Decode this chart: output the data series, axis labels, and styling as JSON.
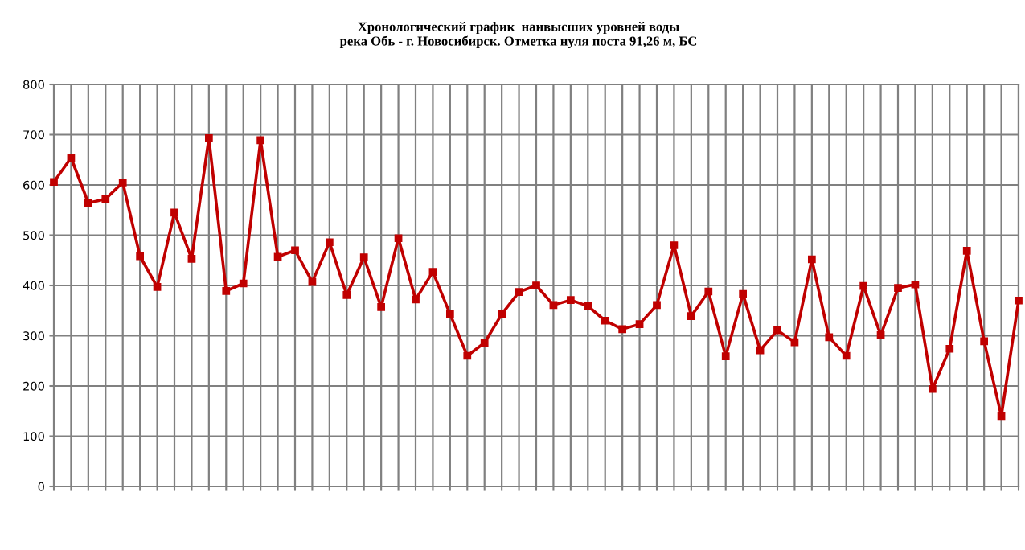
{
  "chart_data": {
    "type": "line",
    "title": "Хронологический график  наивысших уровней воды\nрека Обь - г. Новосибирск. Отметка нуля поста 91,26 м, БС",
    "categories": [
      null,
      null,
      null,
      null,
      null,
      null,
      null,
      null,
      null,
      null,
      null,
      null,
      null,
      null,
      null,
      null,
      null,
      null,
      null,
      null,
      null,
      null,
      null,
      null,
      null,
      null,
      null,
      null,
      null,
      null,
      null,
      null,
      null,
      null,
      null,
      null,
      null,
      null,
      null,
      null,
      null,
      null,
      null,
      null,
      null,
      null,
      null,
      null,
      null,
      null,
      null,
      null,
      null,
      null,
      null,
      null,
      null
    ],
    "values": [
      606,
      654,
      564,
      572,
      605,
      458,
      397,
      545,
      453,
      693,
      389,
      404,
      689,
      457,
      470,
      407,
      486,
      381,
      456,
      357,
      494,
      372,
      427,
      343,
      260,
      286,
      343,
      387,
      400,
      361,
      371,
      359,
      330,
      313,
      323,
      361,
      480,
      339,
      388,
      259,
      383,
      271,
      311,
      287,
      452,
      297,
      260,
      399,
      301,
      395,
      402,
      194,
      274,
      469,
      289,
      140,
      370
    ],
    "color": "#c00000",
    "marker": "square",
    "line_style": "solid",
    "ylim": [
      0,
      800
    ],
    "yticks": [
      0,
      100,
      200,
      300,
      400,
      500,
      600,
      700,
      800
    ],
    "grid": true,
    "tick_labels": "y"
  }
}
